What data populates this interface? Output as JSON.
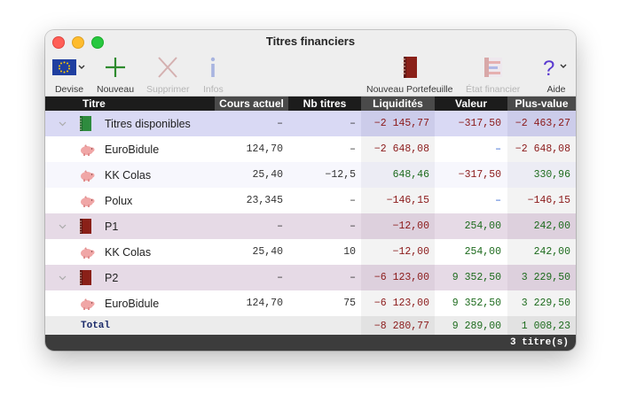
{
  "window": {
    "title": "Titres financiers"
  },
  "toolbar": {
    "devise": "Devise",
    "nouveau": "Nouveau",
    "supprimer": "Supprimer",
    "infos": "Infos",
    "nouveau_portefeuille": "Nouveau Portefeuille",
    "etat_financier": "État financier",
    "aide": "Aide"
  },
  "columns": [
    "Titre",
    "Cours actuel",
    "Nb titres",
    "Liquidités",
    "Valeur",
    "Plus-value"
  ],
  "rows": [
    {
      "kind": "group",
      "icon": "green-book",
      "name": "Titres disponibles",
      "cours": "–",
      "nb": "–",
      "liq": "−2 145,77",
      "val": "−317,50",
      "pv": "−2 463,27"
    },
    {
      "kind": "item",
      "icon": "pig",
      "name": "EuroBidule",
      "cours": "124,70",
      "nb": "–",
      "liq": "−2 648,08",
      "val": "–",
      "pv": "−2 648,08"
    },
    {
      "kind": "item",
      "icon": "pig",
      "name": "KK Colas",
      "cours": "25,40",
      "nb": "−12,5",
      "liq": "648,46",
      "val": "−317,50",
      "pv": "330,96"
    },
    {
      "kind": "item",
      "icon": "pig",
      "name": "Polux",
      "cours": "23,345",
      "nb": "–",
      "liq": "−146,15",
      "val": "–",
      "pv": "−146,15"
    },
    {
      "kind": "sub",
      "icon": "red-book",
      "name": "P1",
      "cours": "–",
      "nb": "–",
      "liq": "−12,00",
      "val": "254,00",
      "pv": "242,00"
    },
    {
      "kind": "item",
      "icon": "pig",
      "name": "KK Colas",
      "cours": "25,40",
      "nb": "10",
      "liq": "−12,00",
      "val": "254,00",
      "pv": "242,00"
    },
    {
      "kind": "sub",
      "icon": "red-book",
      "name": "P2",
      "cours": "–",
      "nb": "–",
      "liq": "−6 123,00",
      "val": "9 352,50",
      "pv": "3 229,50"
    },
    {
      "kind": "item",
      "icon": "pig",
      "name": "EuroBidule",
      "cours": "124,70",
      "nb": "75",
      "liq": "−6 123,00",
      "val": "9 352,50",
      "pv": "3 229,50"
    }
  ],
  "total": {
    "label": "Total",
    "liq": "−8 280,77",
    "val": "9 289,00",
    "pv": "1 008,23"
  },
  "footer": {
    "count": "3 titre(s)"
  },
  "colors": {
    "negative": "#8b1a1a",
    "positive": "#1d6b1d",
    "dash_blue": "#2b5fd0",
    "header_bg": "#1c1c1c"
  }
}
